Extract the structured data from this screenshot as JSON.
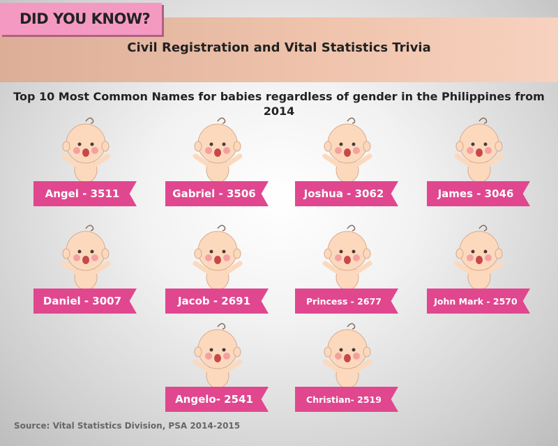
{
  "badge": "DID YOU KNOW?",
  "title": "Civil Registration and Vital Statistics Trivia",
  "subtitle": "Top 10 Most Common Names for babies regardless of gender in the Philippines from 2014",
  "names": [
    {
      "label": "Angel - 3511",
      "name": "Angel",
      "count": 3511
    },
    {
      "label": "Gabriel - 3506",
      "name": "Gabriel",
      "count": 3506
    },
    {
      "label": "Joshua - 3062",
      "name": "Joshua",
      "count": 3062
    },
    {
      "label": "James - 3046",
      "name": "James",
      "count": 3046
    },
    {
      "label": "Daniel - 3007",
      "name": "Daniel",
      "count": 3007
    },
    {
      "label": "Jacob - 2691",
      "name": "Jacob",
      "count": 2691
    },
    {
      "label": "Princess - 2677",
      "name": "Princess",
      "count": 2677
    },
    {
      "label": "John Mark - 2570",
      "name": "John Mark",
      "count": 2570
    },
    {
      "label": "Angelo- 2541",
      "name": "Angelo",
      "count": 2541
    },
    {
      "label": "Christian- 2519",
      "name": "Christian",
      "count": 2519
    }
  ],
  "source": "Source: Vital Statistics Division, PSA 2014-2015",
  "colors": {
    "ribbon": "#e0478f",
    "badge": "#f49ac2",
    "band": "#f0c4ad"
  }
}
